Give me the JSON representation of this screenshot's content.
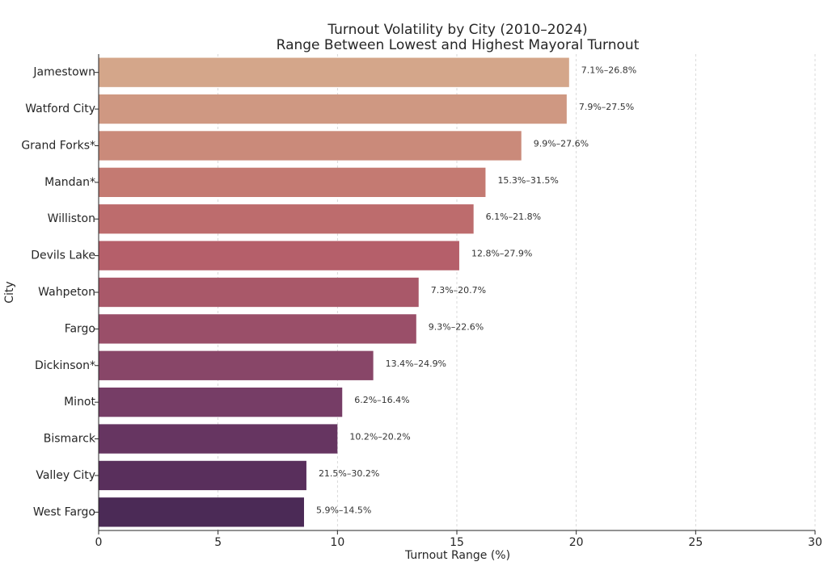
{
  "chart_data": {
    "type": "bar",
    "orientation": "horizontal",
    "title": "Turnout Volatility by City (2010–2024)",
    "subtitle": "Range Between Lowest and Highest Mayoral Turnout",
    "xlabel": "Turnout Range (%)",
    "ylabel": "City",
    "xlim": [
      0,
      30
    ],
    "xticks": [
      0,
      5,
      10,
      15,
      20,
      25,
      30
    ],
    "grid": "vertical dashed",
    "categories": [
      "Jamestown",
      "Watford City",
      "Grand Forks*",
      "Mandan*",
      "Williston",
      "Devils Lake",
      "Wahpeton",
      "Fargo",
      "Dickinson*",
      "Minot",
      "Bismarck",
      "Valley City",
      "West Fargo"
    ],
    "values": [
      19.7,
      19.6,
      17.7,
      16.2,
      15.7,
      15.1,
      13.4,
      13.3,
      11.5,
      10.2,
      10.0,
      8.7,
      8.6
    ],
    "data_labels": [
      "7.1%–26.8%",
      "7.9%–27.5%",
      "9.9%–27.6%",
      "15.3%–31.5%",
      "6.1%–21.8%",
      "12.8%–27.9%",
      "7.3%–20.7%",
      "9.3%–22.6%",
      "13.4%–24.9%",
      "6.2%–16.4%",
      "10.2%–20.2%",
      "21.5%–30.2%",
      "5.9%–14.5%"
    ],
    "colors": [
      "#d4a68a",
      "#cf9882",
      "#ca8a7a",
      "#c47a72",
      "#bd6c6d",
      "#b55f6a",
      "#a95869",
      "#9a4f69",
      "#884668",
      "#763d66",
      "#663561",
      "#592f5c",
      "#4b2a56"
    ]
  }
}
